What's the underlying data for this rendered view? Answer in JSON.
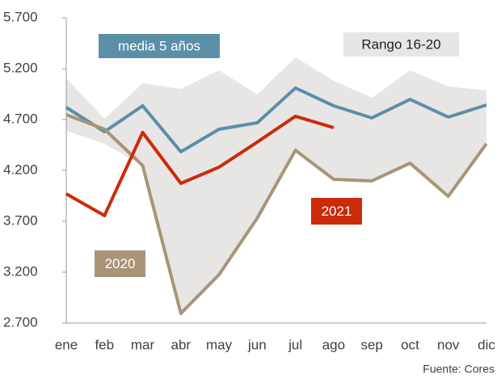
{
  "chart_data": {
    "type": "line",
    "categories": [
      "ene",
      "feb",
      "mar",
      "abr",
      "may",
      "jun",
      "jul",
      "ago",
      "sep",
      "oct",
      "nov",
      "dic"
    ],
    "range": {
      "name": "Rango 16-20",
      "color": "#e8e6e4",
      "upper": [
        5105,
        4708,
        5057,
        5002,
        5184,
        4946,
        5311,
        5081,
        4914,
        5184,
        5025,
        4986
      ],
      "lower": [
        4589,
        4462,
        4248,
        2795,
        3176,
        3732,
        4398,
        4113,
        4097,
        4271,
        3946,
        4462
      ]
    },
    "series": [
      {
        "name": "media 5 años",
        "color": "#5b8fa8",
        "values": [
          4820,
          4580,
          4835,
          4383,
          4605,
          4668,
          5010,
          4835,
          4716,
          4898,
          4724,
          4843
        ]
      },
      {
        "name": "2020",
        "color": "#a89478",
        "values": [
          4748,
          4605,
          4248,
          2795,
          3176,
          3732,
          4398,
          4113,
          4097,
          4271,
          3946,
          4462
        ]
      },
      {
        "name": "2021",
        "color": "#cc2a0a",
        "values": [
          3970,
          3756,
          4573,
          4073,
          4232,
          4478,
          4732,
          4620,
          null,
          null,
          null,
          null
        ]
      }
    ],
    "ylim": [
      2700,
      5700
    ],
    "yticks": [
      {
        "value": 2700,
        "label": "2.700"
      },
      {
        "value": 3200,
        "label": "3.200"
      },
      {
        "value": 3700,
        "label": "3.700"
      },
      {
        "value": 4200,
        "label": "4.200"
      },
      {
        "value": 4700,
        "label": "4.700"
      },
      {
        "value": 5200,
        "label": "5.200"
      },
      {
        "value": 5700,
        "label": "5.700"
      }
    ],
    "grid": false,
    "source": "Fuente: Cores"
  }
}
